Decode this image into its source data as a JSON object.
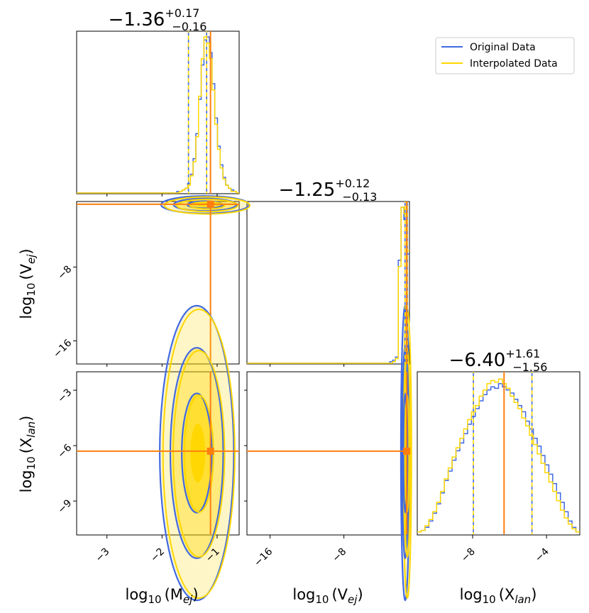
{
  "chart_data": {
    "type": "corner",
    "parameters": [
      {
        "id": "mej",
        "label_main": "log",
        "label_base": "10",
        "label_var": "(M",
        "label_sub": "ej",
        "label_close": ")",
        "range": [
          -3.55,
          -0.6
        ],
        "ticks": [
          -3,
          -2,
          -1
        ],
        "truth": -1.12,
        "median": -1.36,
        "q_low": -1.52,
        "q_high": -1.19,
        "title_value": "−1.36",
        "title_plus": "+0.17",
        "title_minus": "−0.16"
      },
      {
        "id": "vej",
        "label_main": "log",
        "label_base": "10",
        "label_var": "(V",
        "label_sub": "ej",
        "label_close": ")",
        "range": [
          -18.5,
          -0.9
        ],
        "ticks": [
          -16,
          -8
        ],
        "truth": -1.2,
        "median": -1.25,
        "q_low": -1.38,
        "q_high": -1.13,
        "title_value": "−1.25",
        "title_plus": "+0.12",
        "title_minus": "−0.13"
      },
      {
        "id": "xlan",
        "label_main": "log",
        "label_base": "10",
        "label_var": "(X",
        "label_sub": "lan",
        "label_close": ")",
        "range": [
          -11.0,
          -2.2
        ],
        "ticks": [
          -8,
          -4
        ],
        "truth": -6.3,
        "median": -6.4,
        "q_low": -7.96,
        "q_high": -4.79,
        "title_value": "−6.40",
        "title_plus": "+1.61",
        "title_minus": "−1.56"
      }
    ],
    "tick_labels": {
      "mej": [
        "−3",
        "−2",
        "−1"
      ],
      "vej": [
        "−16",
        "−8"
      ],
      "xlan_x": [
        "−8",
        "−4"
      ],
      "vej_y": [
        "−8",
        "−16"
      ],
      "xlan_y": [
        "−3",
        "−6",
        "−9"
      ]
    },
    "ylabel_range_xlan": [
      -10.8,
      -2.0
    ],
    "series": [
      {
        "name": "Original Data",
        "color": "#4169e1"
      },
      {
        "name": "Interpolated Data",
        "color": "#ffd700"
      }
    ],
    "truth_color": "#ff7f0e",
    "histograms": {
      "mej": {
        "bins_from": -3.55,
        "bins_to": -0.6,
        "original": [
          0,
          0,
          0,
          0,
          0,
          0,
          0,
          0,
          0,
          0,
          0,
          0,
          0,
          0,
          0,
          0,
          0,
          0,
          0,
          0,
          0,
          0,
          0,
          0,
          0,
          0,
          0,
          0,
          0,
          0,
          0,
          0,
          0,
          0,
          0,
          0,
          0,
          1,
          1,
          2,
          3,
          6,
          12,
          22,
          38,
          60,
          82,
          98,
          100,
          90,
          70,
          48,
          30,
          18,
          10,
          5,
          3,
          2,
          1,
          0
        ],
        "interpolated": [
          0,
          0,
          0,
          0,
          0,
          0,
          0,
          0,
          0,
          0,
          0,
          0,
          0,
          0,
          0,
          0,
          0,
          0,
          0,
          0,
          0,
          0,
          0,
          0,
          0,
          0,
          0,
          0,
          0,
          0,
          0,
          0,
          0,
          0,
          0,
          0,
          0,
          0,
          1,
          2,
          3,
          5,
          11,
          20,
          36,
          62,
          86,
          100,
          96,
          86,
          66,
          44,
          28,
          16,
          9,
          5,
          3,
          1,
          1,
          0
        ]
      },
      "vej": {
        "bins_from": -18.5,
        "bins_to": -0.9,
        "original": [
          0,
          0,
          0,
          0,
          0,
          0,
          0,
          0,
          0,
          0,
          0,
          0,
          0,
          0,
          0,
          0,
          0,
          0,
          0,
          0,
          0,
          0,
          0,
          0,
          0,
          0,
          0,
          0,
          0,
          0,
          0,
          0,
          0,
          0,
          0,
          0,
          0,
          0,
          0,
          0,
          0,
          0,
          0,
          0,
          0,
          0,
          0,
          0,
          0,
          0,
          0,
          1,
          2,
          4,
          66,
          100,
          92,
          70
        ],
        "interpolated": [
          0,
          0,
          0,
          0,
          0,
          0,
          0,
          0,
          0,
          0,
          0,
          0,
          0,
          0,
          0,
          0,
          0,
          0,
          0,
          0,
          0,
          0,
          0,
          0,
          0,
          0,
          0,
          0,
          0,
          0,
          0,
          0,
          0,
          0,
          0,
          0,
          0,
          0,
          0,
          0,
          0,
          0,
          0,
          0,
          0,
          0,
          0,
          0,
          0,
          0,
          0,
          0,
          1,
          3,
          62,
          100,
          96,
          72
        ]
      },
      "xlan": {
        "bins_from": -11.0,
        "bins_to": -2.2,
        "original": [
          1,
          2,
          4,
          8,
          13,
          19,
          26,
          34,
          40,
          47,
          53,
          58,
          64,
          70,
          75,
          80,
          85,
          89,
          92,
          94,
          93,
          96,
          94,
          92,
          90,
          86,
          82,
          78,
          72,
          67,
          61,
          56,
          50,
          44,
          38,
          32,
          26,
          20,
          14,
          8,
          4,
          1
        ],
        "interpolated": [
          1,
          2,
          5,
          9,
          14,
          20,
          27,
          35,
          42,
          49,
          55,
          61,
          67,
          73,
          78,
          82,
          88,
          92,
          96,
          98,
          97,
          99,
          96,
          93,
          88,
          84,
          80,
          74,
          69,
          63,
          57,
          51,
          45,
          39,
          33,
          27,
          21,
          15,
          10,
          6,
          3,
          1
        ]
      }
    },
    "contours_2d": {
      "mej_vej": {
        "center": [
          -1.2,
          -1.25
        ],
        "spread": [
          0.38,
          0.45
        ]
      },
      "mej_xlan": {
        "center": [
          -1.35,
          -6.4
        ],
        "spread": [
          0.32,
          3.8
        ]
      },
      "vej_xlan": {
        "center": [
          -1.25,
          -6.4
        ],
        "spread": [
          0.22,
          3.8
        ]
      }
    },
    "legend_position": "top-right"
  }
}
